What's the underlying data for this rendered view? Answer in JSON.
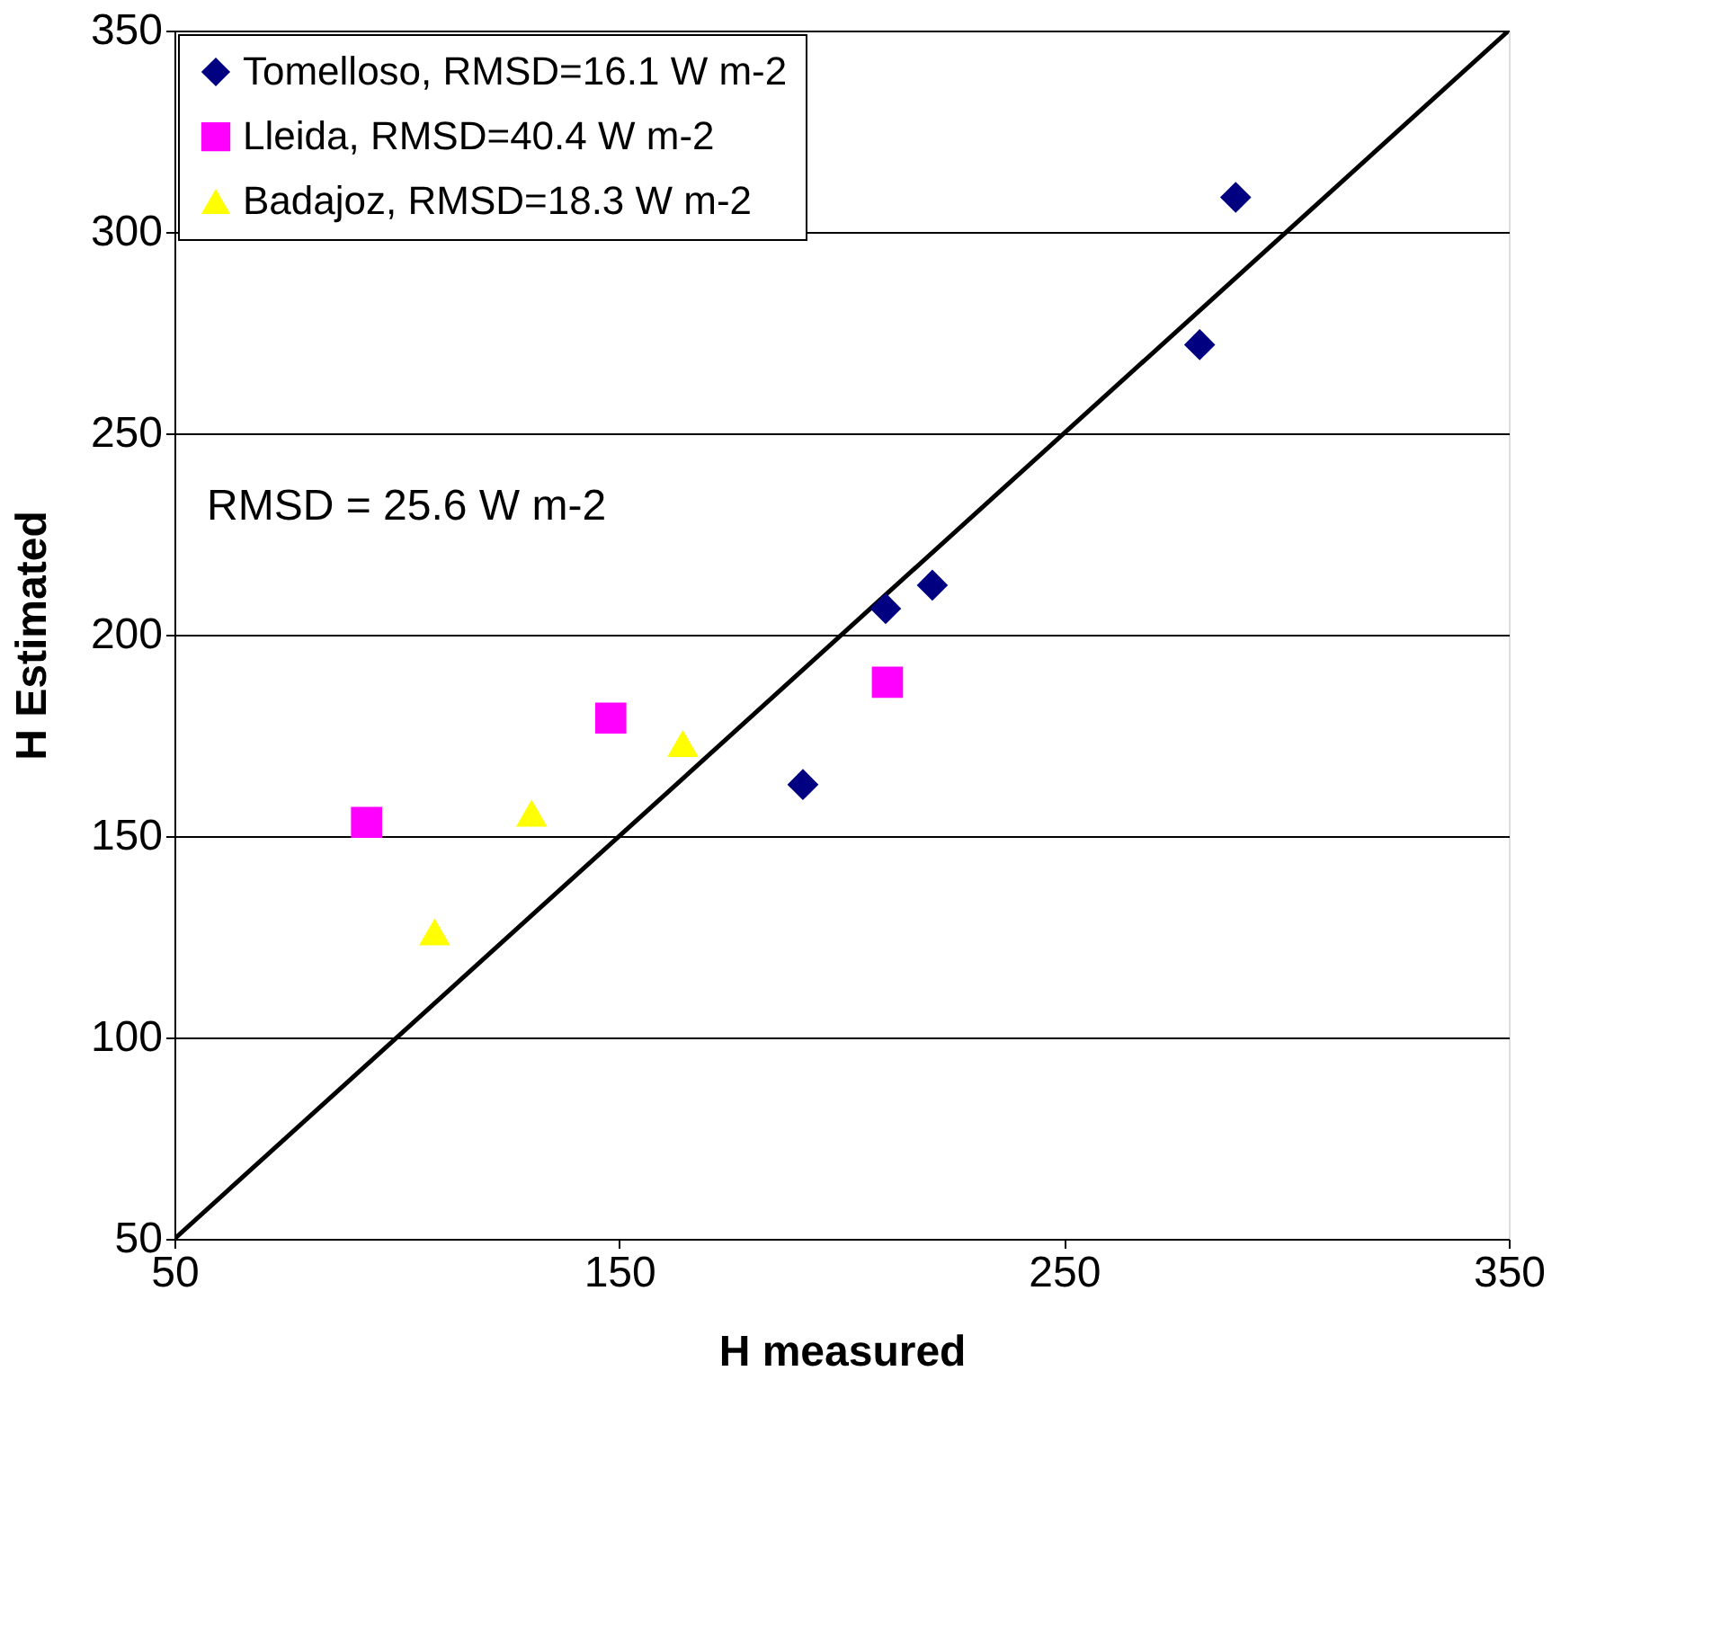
{
  "chart_data": {
    "type": "scatter",
    "xlabel": "H measured",
    "ylabel": "H Estimated",
    "xlim": [
      50,
      350
    ],
    "ylim": [
      50,
      350
    ],
    "xticks": [
      50,
      150,
      250,
      350
    ],
    "yticks": [
      50,
      100,
      150,
      200,
      250,
      300,
      350
    ],
    "grid": "y",
    "legend": "top left",
    "annotations": [
      "RMSD = 25.6 W m-2"
    ],
    "series": [
      {
        "name": "Tomelloso, RMSD=16.1 W m-2",
        "color": "#000080",
        "marker": "diamond",
        "x": [
          288.6,
          280.5,
          220.4,
          209.9,
          191.3
        ],
        "values": [
          308.6,
          272,
          212.3,
          206.5,
          162.8
        ]
      },
      {
        "name": "Lleida, RMSD=40.4 W m-2",
        "color": "#ff00ff",
        "marker": "square",
        "x": [
          93.2,
          148.1,
          210.3
        ],
        "values": [
          153.4,
          179.3,
          188.2
        ]
      },
      {
        "name": "Badajoz, RMSD=18.3 W m-2",
        "color": "#ffff00",
        "marker": "triangle",
        "x": [
          108.5,
          130.3,
          164.3
        ],
        "values": [
          126.2,
          155.7,
          173
        ]
      },
      {
        "type": "line",
        "color": "#000000",
        "x": [
          50,
          350
        ],
        "values": [
          50,
          350
        ]
      }
    ]
  }
}
